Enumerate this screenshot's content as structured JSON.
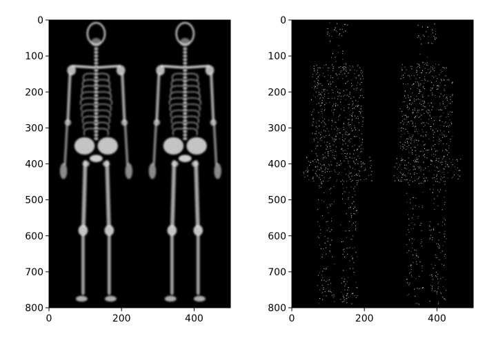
{
  "chart_data": [
    {
      "type": "image",
      "image_name": "bone-scan-anterior-posterior",
      "xlim": [
        0,
        500
      ],
      "ylim": [
        800,
        0
      ],
      "x_ticks": [
        0,
        200,
        400
      ],
      "y_ticks": [
        0,
        100,
        200,
        300,
        400,
        500,
        600,
        700,
        800
      ],
      "x_tick_labels": [
        "0",
        "200",
        "400"
      ],
      "y_tick_labels": [
        "0",
        "100",
        "200",
        "300",
        "400",
        "500",
        "600",
        "700",
        "800"
      ],
      "colormap": "gray",
      "background_color": "#000000",
      "figure_count": 2,
      "figure_centers_x": [
        130,
        375
      ]
    },
    {
      "type": "image",
      "image_name": "sparse-noisy-body-silhouettes",
      "xlim": [
        0,
        500
      ],
      "ylim": [
        800,
        0
      ],
      "x_ticks": [
        0,
        200,
        400
      ],
      "y_ticks": [
        0,
        100,
        200,
        300,
        400,
        500,
        600,
        700,
        800
      ],
      "x_tick_labels": [
        "0",
        "200",
        "400"
      ],
      "y_tick_labels": [
        "0",
        "100",
        "200",
        "300",
        "400",
        "500",
        "600",
        "700",
        "800"
      ],
      "colormap": "gray",
      "background_color": "#000000",
      "figure_count": 2,
      "figure_centers_x": [
        125,
        370
      ]
    }
  ]
}
